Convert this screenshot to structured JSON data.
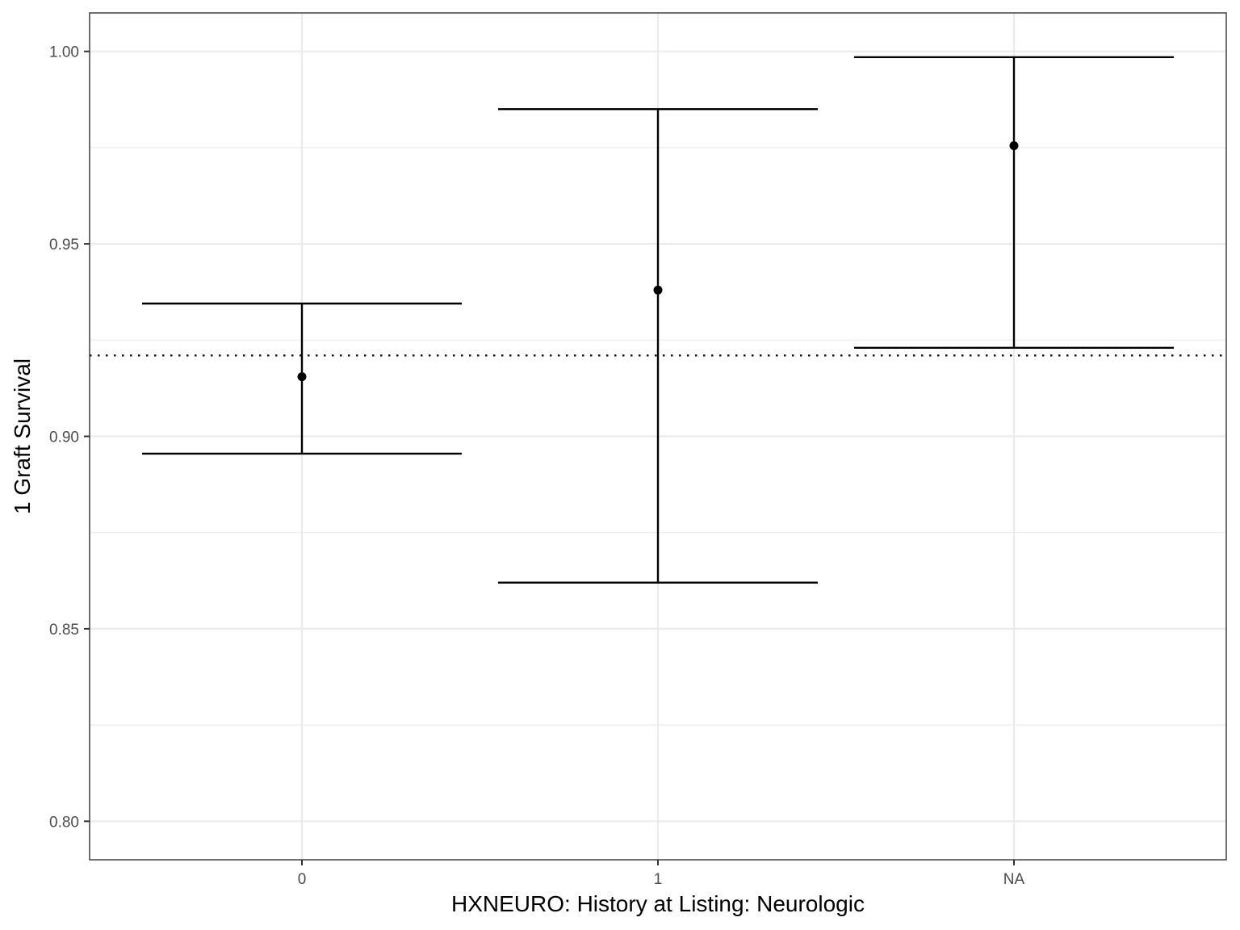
{
  "chart_data": {
    "type": "errorbar",
    "title": "",
    "xlabel": "HXNEURO: History at Listing: Neurologic",
    "ylabel": "1 Graft Survival",
    "categories": [
      "0",
      "1",
      "NA"
    ],
    "estimate": [
      0.9155,
      0.938,
      0.9755
    ],
    "lower": [
      0.8955,
      0.862,
      0.923
    ],
    "upper": [
      0.9345,
      0.985,
      0.9985
    ],
    "reference_line": 0.921,
    "reference_line_style": "dotted",
    "ylim": [
      0.79,
      1.01
    ],
    "yticks": [
      0.8,
      0.85,
      0.9,
      0.95,
      1.0
    ],
    "ytick_labels": [
      "0.80",
      "0.85",
      "0.90",
      "0.95",
      "1.00"
    ],
    "grid": true,
    "legend": "none",
    "colors": {
      "marks": "#000000",
      "grid": "#ebebeb",
      "panel_border": "#333333",
      "tick_text": "#4d4d4d"
    }
  }
}
